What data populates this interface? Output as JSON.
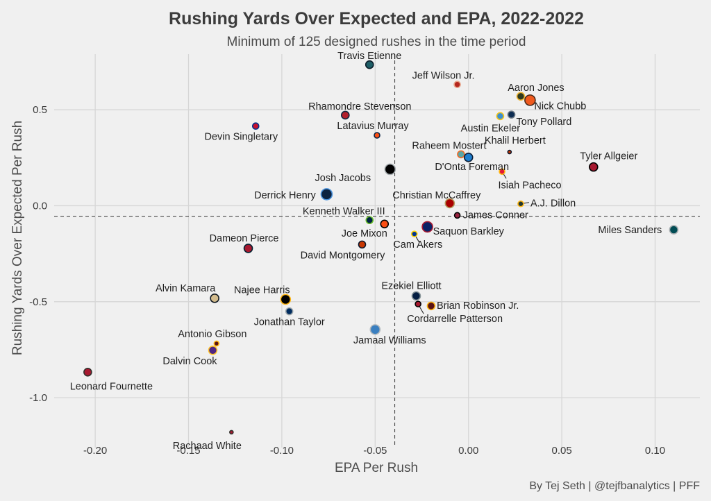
{
  "chart_data": {
    "type": "scatter",
    "title": "Rushing Yards Over Expected and EPA, 2022-2022",
    "subtitle": "Minimum of 125 designed rushes in the time period",
    "xlabel": "EPA Per Rush",
    "ylabel": "Rushing Yards Over Expected Per Rush",
    "caption": "By Tej Seth | @tejfbanalytics | PFF",
    "xlim": [
      -0.222,
      0.124
    ],
    "ylim": [
      -1.26,
      0.79
    ],
    "x_ticks": [
      -0.2,
      -0.15,
      -0.1,
      -0.05,
      0.0,
      0.05,
      0.1
    ],
    "x_tick_labels": [
      "-0.20",
      "-0.15",
      "-0.10",
      "-0.05",
      "0.00",
      "0.05",
      "0.10"
    ],
    "y_ticks": [
      -1.0,
      -0.5,
      0.0,
      0.5
    ],
    "y_tick_labels": [
      "-1.0",
      "-0.5",
      "0.0",
      "0.5"
    ],
    "ref_lines": {
      "x": -0.0395,
      "y": -0.055
    },
    "grid": true,
    "points": [
      {
        "name": "Travis Etienne",
        "x": -0.053,
        "y": 0.735,
        "color": "#1e5e66",
        "stroke": "#0b1d2a",
        "r": 5.5
      },
      {
        "name": "Jeff Wilson Jr.",
        "x": -0.006,
        "y": 0.632,
        "color": "#b5261e",
        "stroke": "#e8a58a",
        "r": 4.5
      },
      {
        "name": "Aaron Jones",
        "x": 0.028,
        "y": 0.57,
        "color": "#2e3a20",
        "stroke": "#f0b530",
        "r": 5.5
      },
      {
        "name": "Nick Chubb",
        "x": 0.033,
        "y": 0.55,
        "color": "#f05a1e",
        "stroke": "#4a2a18",
        "r": 7.5
      },
      {
        "name": "Rhamondre Stevenson",
        "x": -0.066,
        "y": 0.472,
        "color": "#b21f2d",
        "stroke": "#0d2440",
        "r": 5.5
      },
      {
        "name": "Austin Ekeler",
        "x": 0.017,
        "y": 0.467,
        "color": "#3a8fd1",
        "stroke": "#f2c218",
        "r": 5
      },
      {
        "name": "Tony Pollard",
        "x": 0.023,
        "y": 0.475,
        "color": "#0d2d52",
        "stroke": "#6f7a85",
        "r": 5
      },
      {
        "name": "Devin Singletary",
        "x": -0.114,
        "y": 0.415,
        "color": "#c8102e",
        "stroke": "#00338d",
        "r": 4.5
      },
      {
        "name": "Latavius Murray",
        "x": -0.049,
        "y": 0.367,
        "color": "#fb4f14",
        "stroke": "#0a2343",
        "r": 4
      },
      {
        "name": "Khalil Herbert",
        "x": 0.022,
        "y": 0.28,
        "color": "#c83803",
        "stroke": "#0b162a",
        "r": 2.5
      },
      {
        "name": "Raheem Mostert",
        "x": -0.004,
        "y": 0.268,
        "color": "#5aa6a8",
        "stroke": "#f26a24",
        "r": 5
      },
      {
        "name": "D'Onta Foreman",
        "x": 0.0,
        "y": 0.252,
        "color": "#1f7fcf",
        "stroke": "#0a1f3a",
        "r": 6
      },
      {
        "name": "Tyler Allgeier",
        "x": 0.067,
        "y": 0.202,
        "color": "#a71930",
        "stroke": "#000000",
        "r": 6
      },
      {
        "name": "Josh Jacobs",
        "x": -0.042,
        "y": 0.19,
        "color": "#000000",
        "stroke": "#a5acaf",
        "r": 7.5
      },
      {
        "name": "Isiah Pacheco",
        "x": 0.018,
        "y": 0.178,
        "color": "#e31837",
        "stroke": "#ffb612",
        "r": 4
      },
      {
        "name": "Derrick Henry",
        "x": -0.076,
        "y": 0.06,
        "color": "#0c2340",
        "stroke": "#4b92db",
        "r": 8
      },
      {
        "name": "Christian McCaffrey",
        "x": -0.01,
        "y": 0.013,
        "color": "#aa0000",
        "stroke": "#b3995d",
        "r": 6.5
      },
      {
        "name": "A.J. Dillon",
        "x": 0.028,
        "y": 0.01,
        "color": "#203731",
        "stroke": "#ffb612",
        "r": 4
      },
      {
        "name": "James Conner",
        "x": -0.006,
        "y": -0.05,
        "color": "#97233f",
        "stroke": "#000000",
        "r": 4
      },
      {
        "name": "Kenneth Walker III",
        "x": -0.053,
        "y": -0.075,
        "color": "#002244",
        "stroke": "#69be28",
        "r": 5
      },
      {
        "name": "Joe Mixon",
        "x": -0.045,
        "y": -0.095,
        "color": "#fb4f14",
        "stroke": "#000000",
        "r": 5.5
      },
      {
        "name": "Saquon Barkley",
        "x": -0.022,
        "y": -0.11,
        "color": "#0b2265",
        "stroke": "#a71930",
        "r": 7.5
      },
      {
        "name": "Cam Akers",
        "x": -0.029,
        "y": -0.147,
        "color": "#003594",
        "stroke": "#ffd100",
        "r": 4
      },
      {
        "name": "Miles Sanders",
        "x": 0.11,
        "y": -0.125,
        "color": "#004c54",
        "stroke": "#a5acaf",
        "r": 6
      },
      {
        "name": "Dameon Pierce",
        "x": -0.118,
        "y": -0.222,
        "color": "#a71930",
        "stroke": "#03202f",
        "r": 6
      },
      {
        "name": "David Montgomery",
        "x": -0.057,
        "y": -0.202,
        "color": "#c83803",
        "stroke": "#0b162a",
        "r": 5
      },
      {
        "name": "Ezekiel Elliott",
        "x": -0.028,
        "y": -0.47,
        "color": "#041e42",
        "stroke": "#869397",
        "r": 6
      },
      {
        "name": "Alvin Kamara",
        "x": -0.136,
        "y": -0.482,
        "color": "#d3bc8d",
        "stroke": "#101820",
        "r": 6
      },
      {
        "name": "Najee Harris",
        "x": -0.098,
        "y": -0.488,
        "color": "#000000",
        "stroke": "#ffb612",
        "r": 7
      },
      {
        "name": "Cordarrelle Patterson",
        "x": -0.027,
        "y": -0.512,
        "color": "#a71930",
        "stroke": "#000000",
        "r": 4
      },
      {
        "name": "Brian Robinson Jr.",
        "x": -0.02,
        "y": -0.522,
        "color": "#5a1414",
        "stroke": "#ffb612",
        "r": 5.5
      },
      {
        "name": "Jonathan Taylor",
        "x": -0.096,
        "y": -0.55,
        "color": "#002c5f",
        "stroke": "#a2aaad",
        "r": 5
      },
      {
        "name": "Jamaal Williams",
        "x": -0.05,
        "y": -0.645,
        "color": "#3a7fc0",
        "stroke": "#b0b7bc",
        "r": 7
      },
      {
        "name": "Antonio Gibson",
        "x": -0.135,
        "y": -0.718,
        "color": "#5a1414",
        "stroke": "#ffb612",
        "r": 3.5
      },
      {
        "name": "Dalvin Cook",
        "x": -0.137,
        "y": -0.753,
        "color": "#4f2683",
        "stroke": "#ffc62f",
        "r": 6
      },
      {
        "name": "Leonard Fournette",
        "x": -0.204,
        "y": -0.867,
        "color": "#a71930",
        "stroke": "#322f2b",
        "r": 5.5
      },
      {
        "name": "Rachaad White",
        "x": -0.127,
        "y": -1.18,
        "color": "#a71930",
        "stroke": "#322f2b",
        "r": 2.5
      }
    ]
  }
}
